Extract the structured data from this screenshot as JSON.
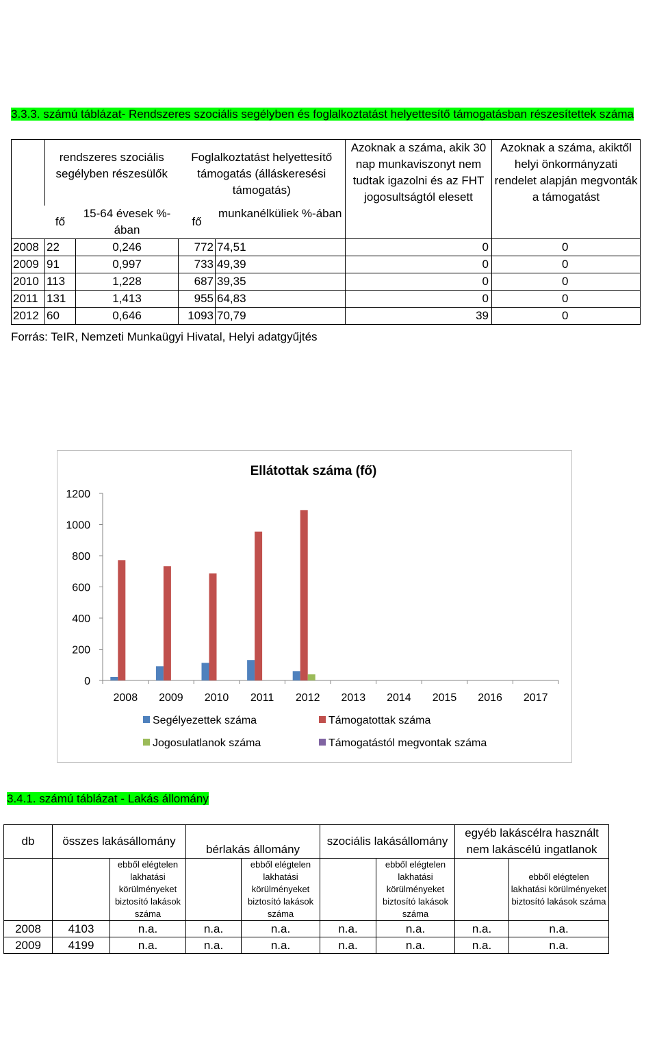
{
  "table1": {
    "caption": "3.3.3. számú táblázat- Rendszeres szociális segélyben és foglalkoztatást helyettesítő támogatásban részesítettek száma",
    "headers": {
      "col1": "rendszeres szociális segélyben részesülők",
      "col2": "Foglalkoztatást helyettesítő támogatás (álláskeresési támogatás)",
      "col3": "Azoknak a száma, akik 30 nap munkaviszonyt nem tudtak igazolni és az FHT jogosultságtól elesett",
      "col4": "Azoknak a száma, akiktől helyi önkormányzati rendelet alapján megvonták a támogatást"
    },
    "subheaders": {
      "fo1": "fő",
      "pct1": "15-64 évesek %-ában",
      "fo2": "fő",
      "pct2": "munkanélküliek %-ában"
    },
    "rows": [
      {
        "year": "2008",
        "fo1": "22",
        "pct1": "0,246",
        "fo2": "772",
        "pct2": "74,51",
        "c3": "0",
        "c4": "0"
      },
      {
        "year": "2009",
        "fo1": "91",
        "pct1": "0,997",
        "fo2": "733",
        "pct2": "49,39",
        "c3": "0",
        "c4": "0"
      },
      {
        "year": "2010",
        "fo1": "113",
        "pct1": "1,228",
        "fo2": "687",
        "pct2": "39,35",
        "c3": "0",
        "c4": "0"
      },
      {
        "year": "2011",
        "fo1": "131",
        "pct1": "1,413",
        "fo2": "955",
        "pct2": "64,83",
        "c3": "0",
        "c4": "0"
      },
      {
        "year": "2012",
        "fo1": "60",
        "pct1": "0,646",
        "fo2": "1093",
        "pct2": "70,79",
        "c3": "39",
        "c4": "0"
      }
    ],
    "source": "Forrás: TeIR, Nemzeti Munkaügyi Hivatal, Helyi adatgyűjtés"
  },
  "chart_data": {
    "type": "bar",
    "title": "Ellátottak száma (fő)",
    "categories": [
      "2008",
      "2009",
      "2010",
      "2011",
      "2012",
      "2013",
      "2014",
      "2015",
      "2016",
      "2017"
    ],
    "yticks": [
      "0",
      "200",
      "400",
      "600",
      "800",
      "1000",
      "1200"
    ],
    "ylim": [
      0,
      1200
    ],
    "grid": false,
    "legend_position": "bottom",
    "series": [
      {
        "name": "Segélyezettek száma",
        "color": "#4f81bd",
        "values": [
          22,
          91,
          113,
          131,
          60,
          null,
          null,
          null,
          null,
          null
        ]
      },
      {
        "name": "Támogatottak száma",
        "color": "#c0504d",
        "values": [
          772,
          733,
          687,
          955,
          1093,
          null,
          null,
          null,
          null,
          null
        ]
      },
      {
        "name": "Jogosulatlanok száma",
        "color": "#9bbb59",
        "values": [
          0,
          0,
          0,
          0,
          39,
          null,
          null,
          null,
          null,
          null
        ]
      },
      {
        "name": "Támogatástól megvontak száma",
        "color": "#8064a2",
        "values": [
          0,
          0,
          0,
          0,
          0,
          null,
          null,
          null,
          null,
          null
        ]
      }
    ]
  },
  "table2": {
    "caption": "3.4.1. számú táblázat - Lakás állomány",
    "headers": {
      "db": "db",
      "total": "összes lakásállomány",
      "rental": "bérlakás állomány",
      "social": "szociális lakásállomány",
      "other": "egyéb lakáscélra használt nem lakáscélú ingatlanok",
      "sub": "ebből elégtelen lakhatási körülményeket biztosító lakások száma"
    },
    "rows": [
      {
        "year": "2008",
        "total": "4103",
        "c1": "n.a.",
        "c2": "n.a.",
        "c3": "n.a.",
        "c4": "n.a.",
        "c5": "n.a.",
        "c6": "n.a.",
        "c7": "n.a."
      },
      {
        "year": "2009",
        "total": "4199",
        "c1": "n.a.",
        "c2": "n.a.",
        "c3": "n.a.",
        "c4": "n.a.",
        "c5": "n.a.",
        "c6": "n.a.",
        "c7": "n.a."
      }
    ]
  }
}
